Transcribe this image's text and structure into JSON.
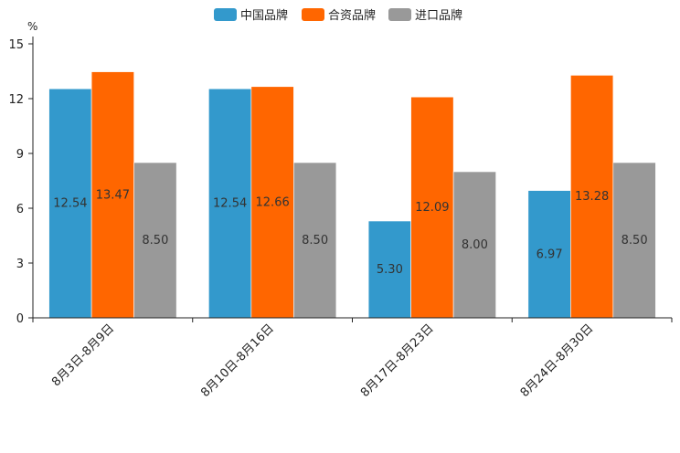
{
  "chart_data": {
    "type": "bar",
    "y_unit": "%",
    "categories": [
      "8月3日-8月9日",
      "8月10日-8月16日",
      "8月17日-8月23日",
      "8月24日-8月30日"
    ],
    "series": [
      {
        "name": "中国品牌",
        "color": "#3399cc",
        "values": [
          12.54,
          12.54,
          5.3,
          6.97
        ],
        "labels": [
          "12.54",
          "12.54",
          "5.30",
          "6.97"
        ]
      },
      {
        "name": "合资品牌",
        "color": "#ff6600",
        "values": [
          13.47,
          12.66,
          12.09,
          13.28
        ],
        "labels": [
          "13.47",
          "12.66",
          "12.09",
          "13.28"
        ]
      },
      {
        "name": "进口品牌",
        "color": "#999999",
        "values": [
          8.5,
          8.5,
          8.0,
          8.5
        ],
        "labels": [
          "8.50",
          "8.50",
          "8.00",
          "8.50"
        ]
      }
    ],
    "yticks": [
      "0",
      "3",
      "6",
      "9",
      "12",
      "15"
    ],
    "ytick_values": [
      0,
      3,
      6,
      9,
      12,
      15
    ],
    "ylim": [
      0,
      15
    ],
    "legend_position": "top-center",
    "grid": false
  }
}
